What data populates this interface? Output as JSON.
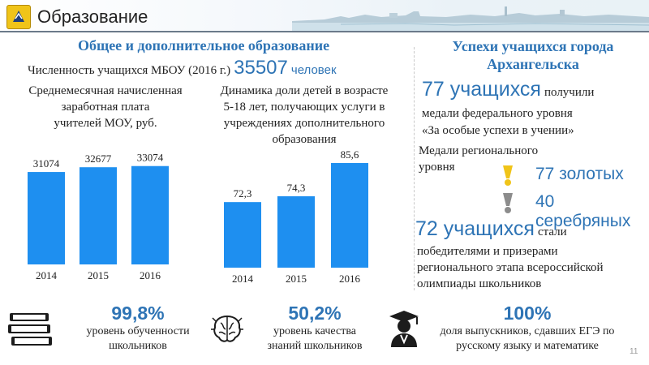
{
  "header": {
    "title": "Образование",
    "icon": "city-emblem-icon"
  },
  "left_section": {
    "title": "Общее и дополнительное образование",
    "students_label": "Численность учащихся МБОУ (2016 г.)",
    "students_value": "35507",
    "students_unit": "человек",
    "salary_caption_line1": "Среднемесячная начисленная",
    "salary_caption_line2": "заработная плата",
    "salary_caption_line3": "учителей МОУ, руб.",
    "dynamics_caption_line1": "Динамика доли детей в возрасте",
    "dynamics_caption_line2": "5-18 лет, получающих услуги в",
    "dynamics_caption_line3": "учреждениях дополнительного",
    "dynamics_caption_line4": "образования"
  },
  "right_section": {
    "title_line1": "Успехи учащихся города",
    "title_line2": "Архангельска",
    "medals_count": "77 учащихся",
    "medals_text_line1": "получили",
    "medals_text_line2": "медали федерального уровня",
    "medals_text_line3": "«За особые успехи в учении»",
    "regional_line1": "Медали регионального",
    "regional_line2": "уровня",
    "gold": "77 золотых",
    "silver": "40 серебряных",
    "olympiad_count": "72 учащихся",
    "olympiad_text_line1": "стали",
    "olympiad_text_line2": "победителями и призерами",
    "olympiad_text_line3": "регионального этапа всероссийской",
    "olympiad_text_line4": "олимпиады школьников",
    "gold_color": "#f0c419",
    "silver_color": "#8c8c8c"
  },
  "footer": {
    "item1_value": "99,8%",
    "item1_line1": "уровень обученности",
    "item1_line2": "школьников",
    "item1_icon": "books-icon",
    "item2_value": "50,2%",
    "item2_line1": "уровень качества",
    "item2_line2": "знаний школьников",
    "item2_icon": "brain-icon",
    "item3_value": "100%",
    "item3_line1": "доля выпускников, сдавших ЕГЭ по",
    "item3_line2": "русскому языку и математике",
    "item3_icon": "graduate-icon",
    "page_number": "11"
  },
  "colors": {
    "accent": "#2e74b5",
    "bar": "#1e8ff0"
  },
  "chart_data": [
    {
      "type": "bar",
      "categories": [
        "2014",
        "2015",
        "2016"
      ],
      "values": [
        31074,
        32677,
        33074
      ],
      "value_labels": [
        "31074",
        "32677",
        "33074"
      ],
      "ylim": [
        0,
        36000
      ]
    },
    {
      "type": "bar",
      "categories": [
        "2014",
        "2015",
        "2016"
      ],
      "values": [
        72.3,
        74.3,
        85.6
      ],
      "value_labels": [
        "72,3",
        "74,3",
        "85,6"
      ],
      "ylim": [
        50,
        90
      ]
    }
  ]
}
